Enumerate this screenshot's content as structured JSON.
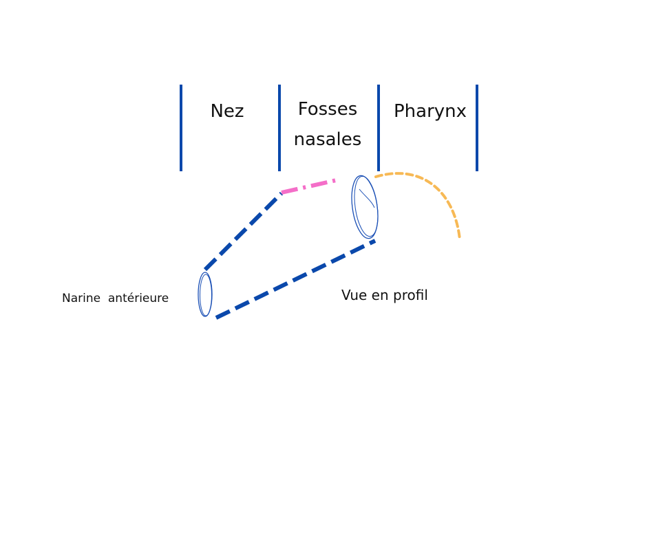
{
  "colors": {
    "divider": "#0a48ab",
    "nose_outline": "#0a48ab",
    "nasal_fossae": "#f46ec8",
    "pharynx": "#f7b955",
    "nostril_ellipse": "#1a4fb5",
    "text": "#111111"
  },
  "sections": {
    "nez": "Nez",
    "fosses_line1": "Fosses",
    "fosses_line2": "nasales",
    "pharynx": "Pharynx"
  },
  "labels": {
    "narine": "Narine  antérieure",
    "vue": "Vue en profil"
  }
}
